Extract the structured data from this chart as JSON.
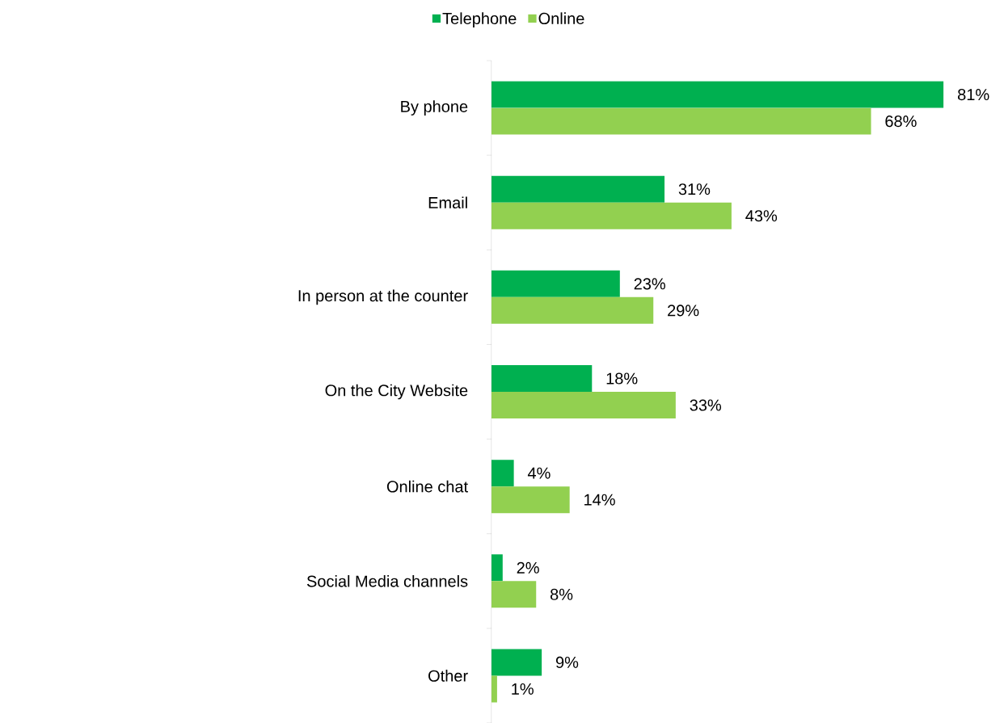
{
  "chart_data": {
    "type": "bar",
    "orientation": "horizontal",
    "legend": "top",
    "categories": [
      "By phone",
      "Email",
      "In person at the counter",
      "On the City Website",
      "Online chat",
      "Social Media channels",
      "Other"
    ],
    "series": [
      {
        "name": "Telephone",
        "color": "#00b050",
        "values": [
          81,
          31,
          23,
          18,
          4,
          2,
          9
        ],
        "value_labels": [
          "81%",
          "31%",
          "23%",
          "18%",
          "4%",
          "2%",
          "9%"
        ]
      },
      {
        "name": "Online",
        "color": "#92d050",
        "values": [
          68,
          43,
          29,
          33,
          14,
          8,
          1
        ],
        "value_labels": [
          "68%",
          "43%",
          "29%",
          "33%",
          "14%",
          "8%",
          "1%"
        ]
      }
    ]
  }
}
